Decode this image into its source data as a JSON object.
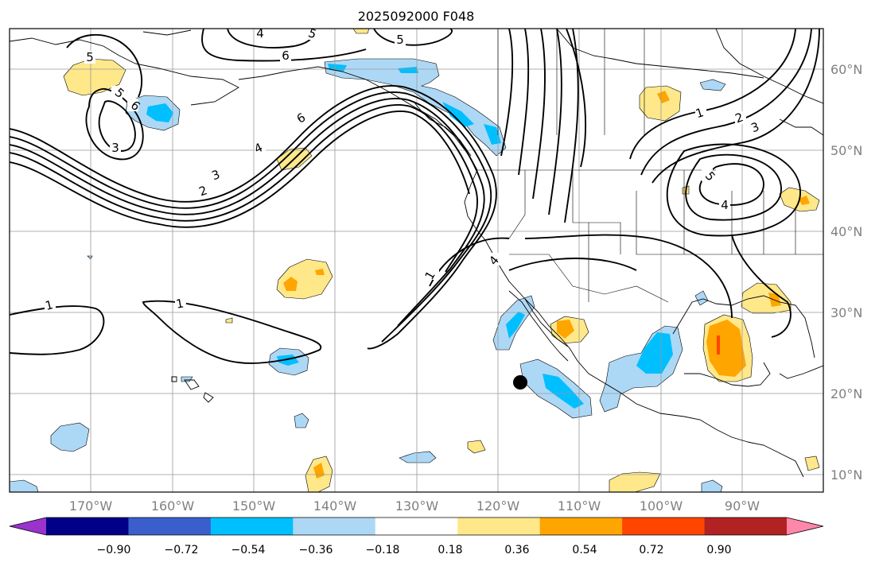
{
  "title": "2025092000 F048",
  "lat_labels": [
    "60°N",
    "50°N",
    "40°N",
    "30°N",
    "20°N",
    "10°N"
  ],
  "lon_labels": [
    "170°W",
    "160°W",
    "150°W",
    "140°W",
    "130°W",
    "120°W",
    "110°W",
    "100°W",
    "90°W"
  ],
  "colorbar": {
    "ticks": [
      "−0.90",
      "−0.72",
      "−0.54",
      "−0.36",
      "−0.18",
      "0.18",
      "0.36",
      "0.54",
      "0.72",
      "0.90"
    ],
    "colors": [
      "#9933cc",
      "#000088",
      "#3a5fcd",
      "#00bfff",
      "#add8f5",
      "#ffffff",
      "#ffe88a",
      "#ffa500",
      "#ff4500",
      "#b22222",
      "#ff88aa"
    ]
  },
  "contour_labels": [
    "1",
    "1",
    "1",
    "2",
    "2",
    "3",
    "3",
    "3",
    "4",
    "4",
    "4",
    "5",
    "5",
    "5",
    "5",
    "6",
    "6",
    "6"
  ],
  "colors": {
    "grid": "#999999",
    "contour": "#000000",
    "coast": "#000000",
    "marker": "#000000"
  }
}
